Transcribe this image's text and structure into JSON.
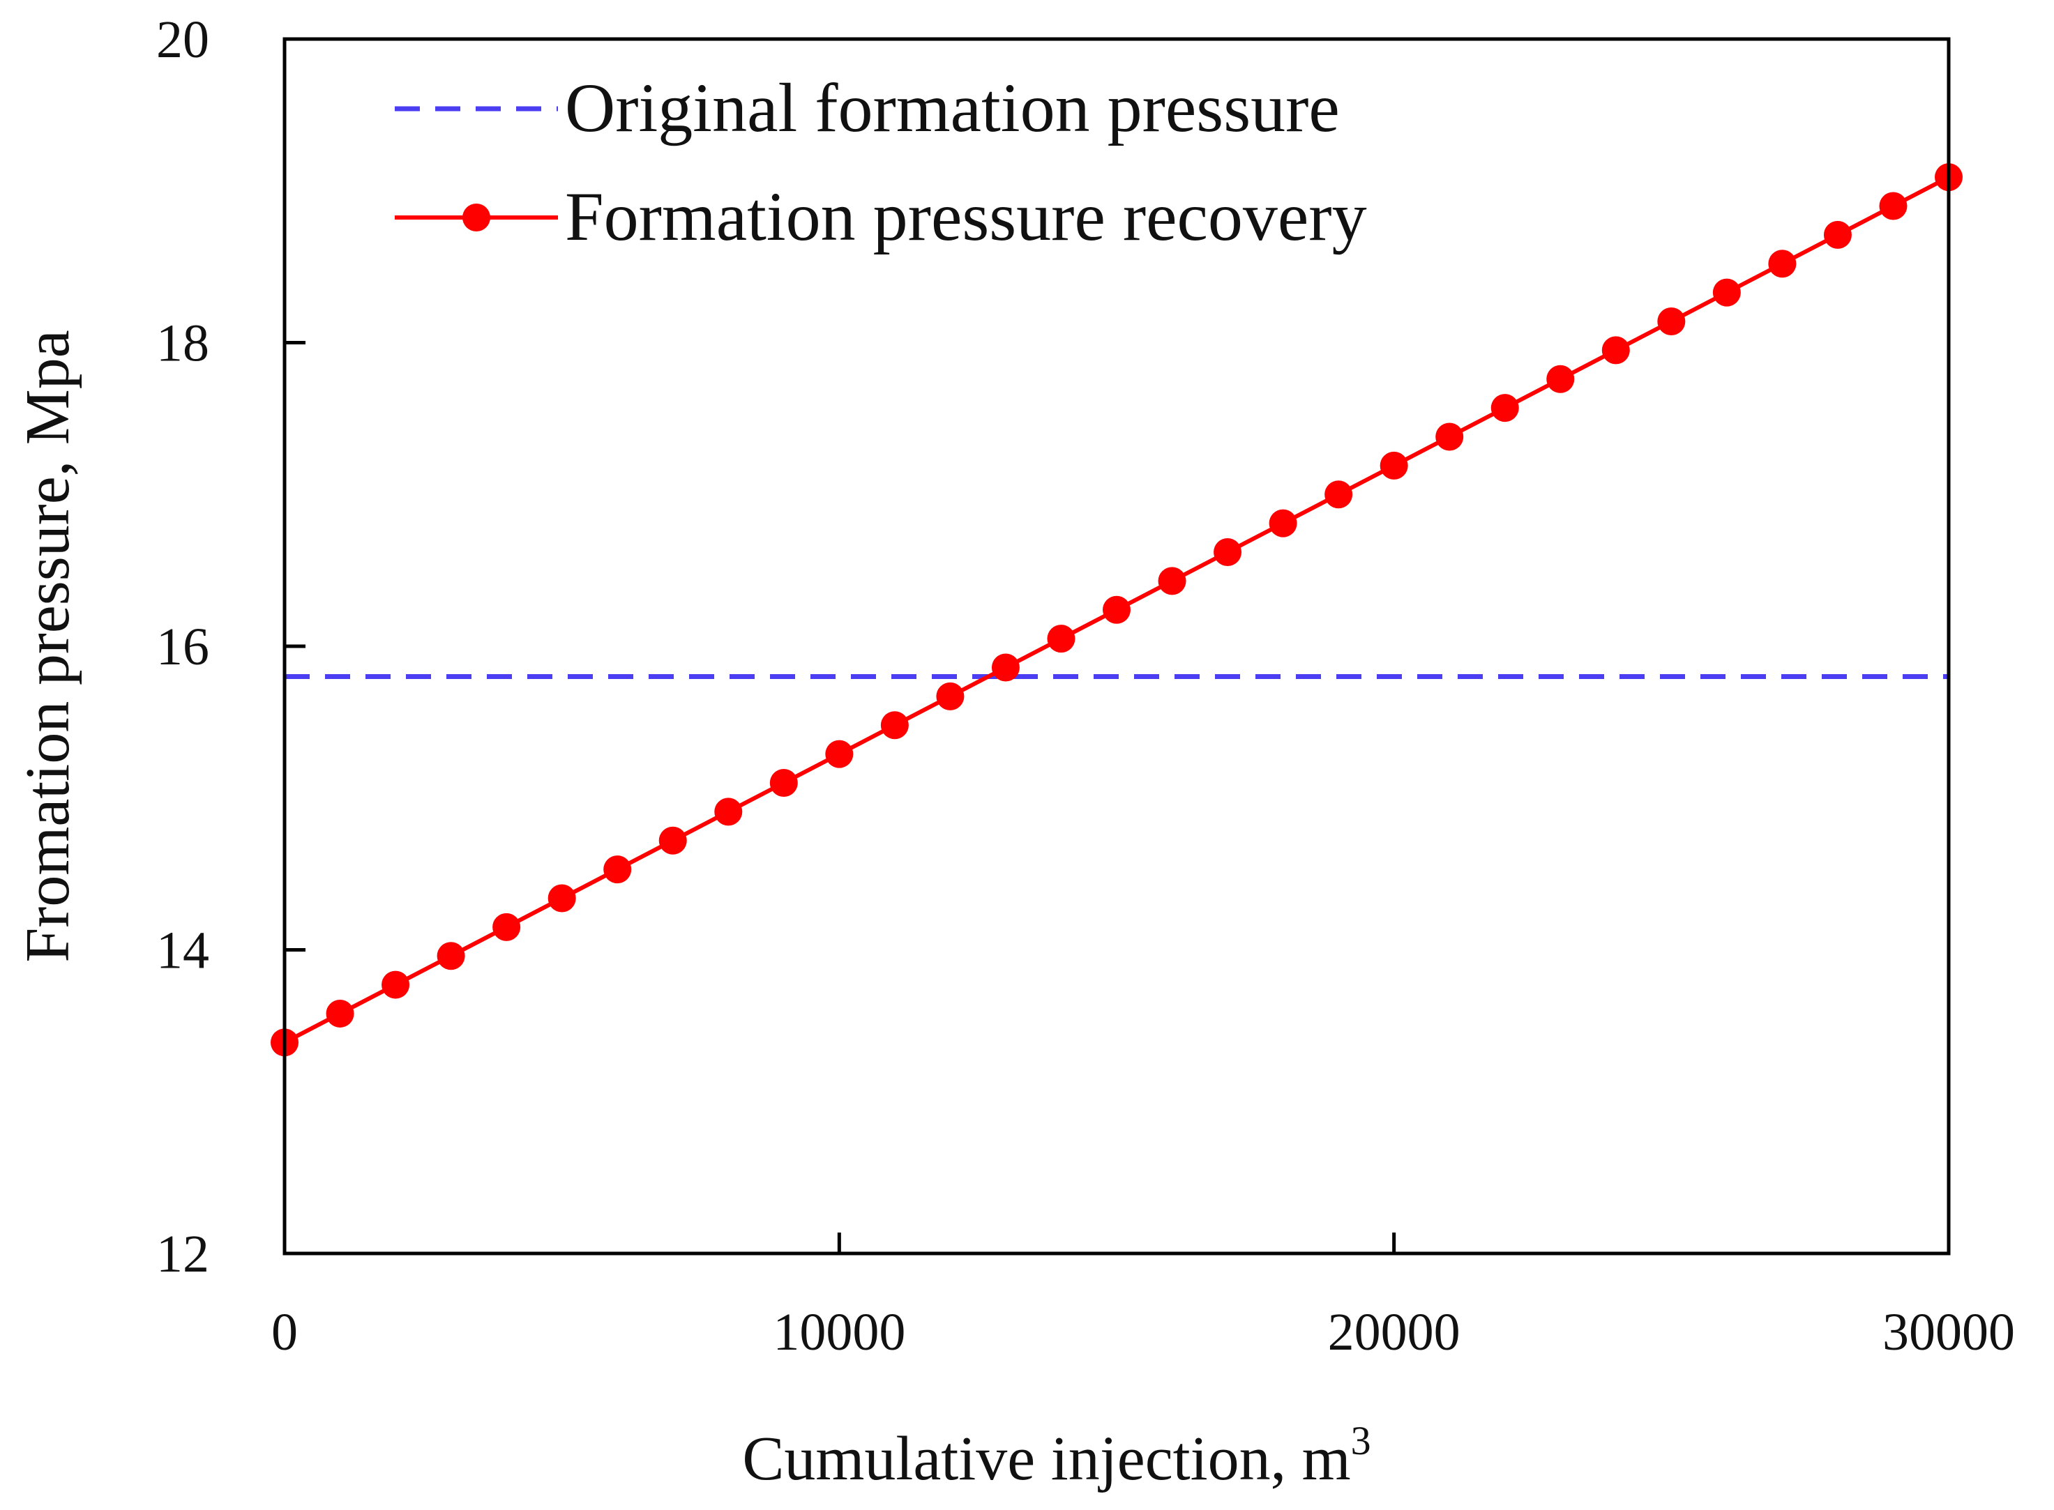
{
  "chart_data": {
    "type": "line",
    "xlabel": "Cumulative injection, m",
    "xlabel_superscript": "3",
    "ylabel": "Fromation pressure, Mpa",
    "xlim": [
      0,
      30000
    ],
    "ylim": [
      12,
      20
    ],
    "xticks": [
      0,
      10000,
      20000,
      30000
    ],
    "xtick_labels": [
      "0",
      "10000",
      "20000",
      "30000"
    ],
    "yticks": [
      12,
      14,
      16,
      18,
      20
    ],
    "ytick_labels": [
      "12",
      "14",
      "16",
      "18",
      "20"
    ],
    "grid": false,
    "legend_position": "top-left",
    "series": [
      {
        "name": "Original formation pressure",
        "style": "dashed",
        "color": "#4a3df2",
        "markers": false,
        "x": [
          0,
          30000
        ],
        "y": [
          15.8,
          15.8
        ]
      },
      {
        "name": "Formation pressure recovery",
        "style": "solid",
        "color": "#ff0000",
        "markers": true,
        "x": [
          0,
          1000,
          2000,
          3000,
          4000,
          5000,
          6000,
          7000,
          8000,
          9000,
          10000,
          11000,
          12000,
          13000,
          14000,
          15000,
          16000,
          17000,
          18000,
          19000,
          20000,
          21000,
          22000,
          23000,
          24000,
          25000,
          26000,
          27000,
          28000,
          29000,
          30000
        ],
        "y": [
          13.39,
          13.58,
          13.77,
          13.96,
          14.15,
          14.34,
          14.53,
          14.72,
          14.91,
          15.1,
          15.29,
          15.48,
          15.67,
          15.86,
          16.05,
          16.24,
          16.43,
          16.62,
          16.81,
          17.0,
          17.19,
          17.38,
          17.57,
          17.76,
          17.95,
          18.14,
          18.33,
          18.52,
          18.71,
          18.9,
          19.09
        ]
      }
    ]
  }
}
